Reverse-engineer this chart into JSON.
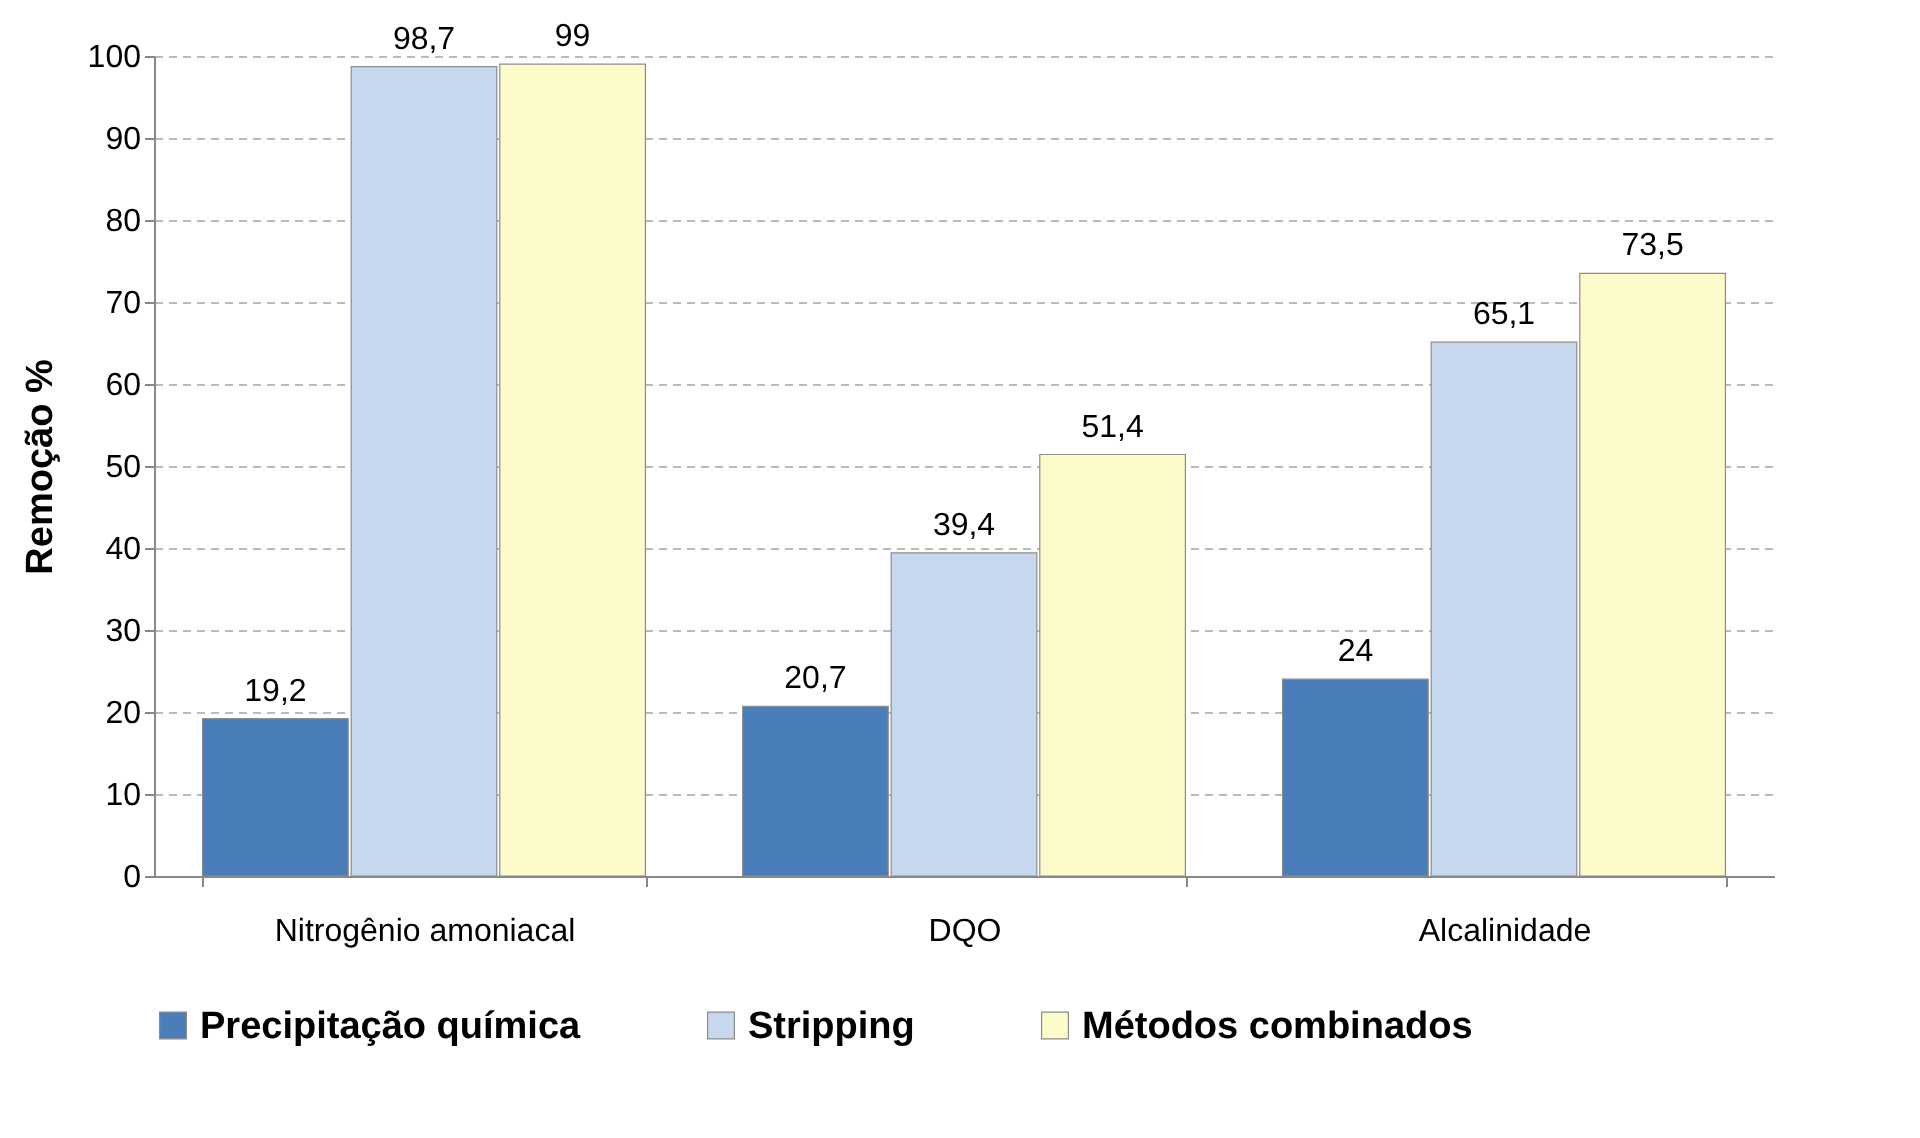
{
  "chart_data": {
    "type": "bar",
    "ylabel": "Remoção %",
    "categories": [
      "Nitrogênio amoniacal",
      "DQO",
      "Alcalinidade"
    ],
    "series": [
      {
        "name": "Precipitação química",
        "color": "#4a7ebb",
        "values": [
          19.2,
          20.7,
          24
        ],
        "value_labels": [
          "19,2",
          "20,7",
          "24"
        ]
      },
      {
        "name": "Stripping",
        "color": "#c6d7ee",
        "values": [
          98.7,
          39.4,
          65.1
        ],
        "value_labels": [
          "98,7",
          "39,4",
          "65,1"
        ]
      },
      {
        "name": "Métodos combinados",
        "color": "#fdfbc9",
        "values": [
          99,
          51.4,
          73.5
        ],
        "value_labels": [
          "99",
          "51,4",
          "73,5"
        ]
      }
    ],
    "ylim": [
      0,
      100
    ],
    "yticks": [
      0,
      10,
      20,
      30,
      40,
      50,
      60,
      70,
      80,
      90,
      100
    ],
    "grid": "y",
    "legend": "bottom"
  }
}
